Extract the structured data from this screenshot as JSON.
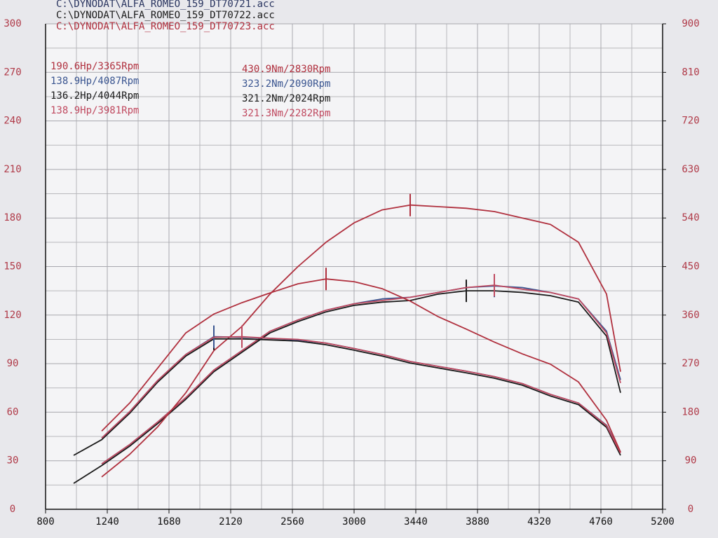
{
  "chart_data": {
    "type": "line",
    "files": [
      {
        "text": "C:\\DYNODAT\\ALFA_ROMEO_159_DT70721.acc",
        "color": "#2a3560"
      },
      {
        "text": "C:\\DYNODAT\\ALFA_ROMEO_159_DT70722.acc",
        "color": "#1a1a1a"
      },
      {
        "text": "C:\\DYNODAT\\ALFA_ROMEO_159_DT70723.acc",
        "color": "#b0303e"
      }
    ],
    "power_labels": [
      {
        "text": "190.6Hp/3365Rpm",
        "color": "#b0303e"
      },
      {
        "text": "138.9Hp/4087Rpm",
        "color": "#3a5590"
      },
      {
        "text": "136.2Hp/4044Rpm",
        "color": "#1a1a1a"
      },
      {
        "text": "138.9Hp/3981Rpm",
        "color": "#c04a60"
      }
    ],
    "torque_labels": [
      {
        "text": "430.9Nm/2830Rpm",
        "color": "#b0303e"
      },
      {
        "text": "323.2Nm/2090Rpm",
        "color": "#3a5590"
      },
      {
        "text": "321.2Nm/2024Rpm",
        "color": "#1a1a1a"
      },
      {
        "text": "321.3Nm/2282Rpm",
        "color": "#c04a60"
      }
    ],
    "x": [
      1000,
      1200,
      1400,
      1600,
      1800,
      2000,
      2200,
      2400,
      2600,
      2800,
      3000,
      3200,
      3400,
      3600,
      3800,
      4000,
      4200,
      4400,
      4600,
      4800,
      4900
    ],
    "series": [
      {
        "color": "#1a1a1a",
        "axis": "y",
        "values": [
          16,
          27,
          39,
          53,
          68,
          85,
          97,
          109,
          116,
          122,
          126,
          128,
          129,
          133,
          135,
          135,
          134,
          132,
          128,
          107,
          72
        ]
      },
      {
        "color": "#3a5590",
        "axis": "y",
        "values": [
          null,
          28,
          40,
          54,
          69,
          86,
          98,
          110,
          117,
          123,
          127,
          130,
          131,
          134,
          137,
          138,
          137,
          134,
          130,
          110,
          80
        ]
      },
      {
        "color": "#c04a60",
        "axis": "y",
        "values": [
          null,
          28,
          40,
          54,
          69,
          86,
          98,
          110,
          117,
          123,
          127,
          129,
          131,
          134,
          137,
          138.5,
          136,
          134,
          130,
          109,
          78
        ]
      },
      {
        "color": "#b0303e",
        "axis": "y",
        "values": [
          null,
          20,
          34,
          51,
          72,
          98,
          113,
          133,
          150,
          165,
          177,
          185,
          188,
          187,
          186,
          184,
          180,
          176,
          165,
          133,
          85
        ]
      },
      {
        "color": "#1a1a1a",
        "axis": "y2",
        "values": [
          100,
          129,
          178,
          236,
          284,
          316,
          316,
          314,
          312,
          305,
          295,
          284,
          271,
          262,
          253,
          243,
          230,
          210,
          194,
          152,
          100
        ]
      },
      {
        "color": "#3a5590",
        "axis": "y2",
        "values": [
          null,
          132,
          181,
          239,
          287,
          320,
          319,
          317,
          314,
          308,
          298,
          287,
          274,
          265,
          256,
          246,
          233,
          213,
          197,
          156,
          106
        ]
      },
      {
        "color": "#c04a60",
        "axis": "y2",
        "values": [
          null,
          132,
          181,
          239,
          287,
          319,
          320,
          317,
          315,
          308,
          298,
          287,
          274,
          265,
          256,
          246,
          233,
          213,
          197,
          155,
          104
        ]
      },
      {
        "color": "#b0303e",
        "axis": "y2",
        "values": [
          null,
          145,
          197,
          262,
          327,
          362,
          383,
          401,
          418,
          427,
          422,
          409,
          386,
          357,
          334,
          310,
          288,
          269,
          236,
          165,
          106
        ]
      }
    ],
    "xlim": [
      800,
      5200
    ],
    "xticks": [
      800,
      1240,
      1680,
      2120,
      2560,
      3000,
      3440,
      3880,
      4320,
      4760,
      5200
    ],
    "ylim": [
      0,
      300
    ],
    "yticks": [
      0,
      30,
      60,
      90,
      120,
      150,
      180,
      210,
      240,
      270,
      300
    ],
    "y2lim": [
      0,
      900
    ],
    "y2ticks": [
      0,
      90,
      180,
      270,
      360,
      450,
      540,
      630,
      720,
      810,
      900
    ],
    "grid": true,
    "axis_label_color": "#b03a48"
  }
}
